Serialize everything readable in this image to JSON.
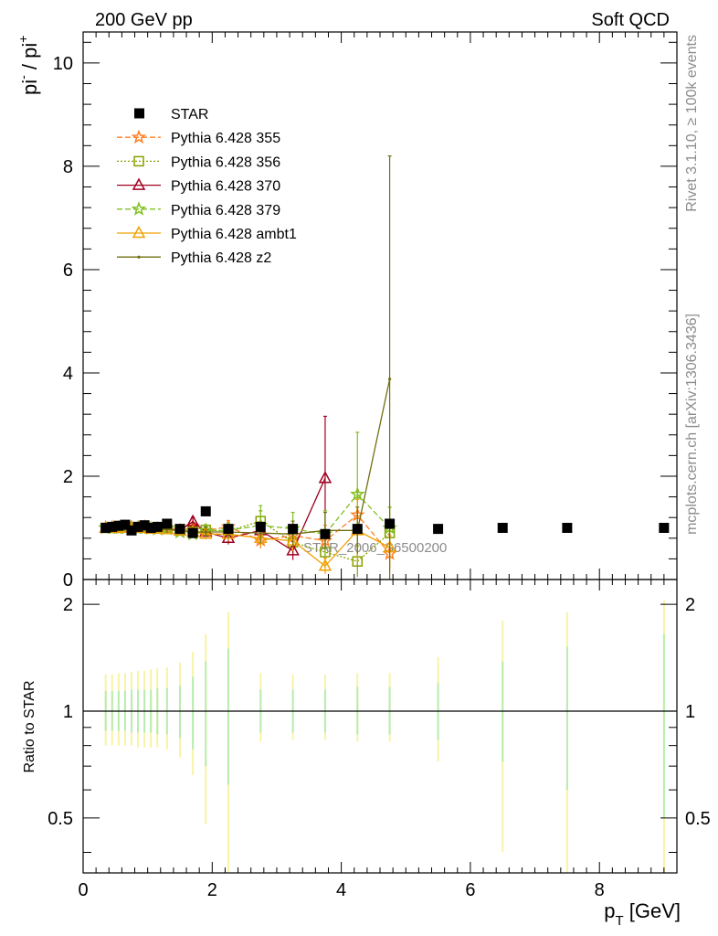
{
  "header": {
    "left": "200 GeV pp",
    "right": "Soft QCD",
    "side_top": "Rivet 3.1.10, ≥ 100k events",
    "side_bottom": "mcplots.cern.ch [arXiv:1306.3436]"
  },
  "ylabel_main": {
    "base": "pi",
    "sup1": "-",
    "mid": " / pi",
    "sup2": "+"
  },
  "ylabel_ratio": "Ratio to STAR",
  "xlabel": {
    "base": "p",
    "sub": "T",
    "unit": " [GeV]"
  },
  "watermark": "STAR_2006_S6500200",
  "colors": {
    "star": "#000000",
    "p355": "#ff7f24",
    "p356": "#8aa000",
    "p370": "#a00020",
    "p379": "#80c020",
    "ambt1": "#f0a000",
    "z2": "#707010"
  },
  "chart_data": {
    "type": "scatter",
    "x_range": [
      0,
      9.2
    ],
    "main_ylim": [
      0,
      10.6
    ],
    "ratio_ylim": [
      0.35,
      2.35
    ],
    "ratio_log": true,
    "x_ticks": [
      0,
      2,
      4,
      6,
      8
    ],
    "main_y_ticks": [
      0,
      2,
      4,
      6,
      8,
      10
    ],
    "ratio_y_ticks": [
      0.5,
      1,
      2
    ],
    "legend_position": "top-left",
    "star": {
      "name": "STAR",
      "x": [
        0.35,
        0.45,
        0.55,
        0.65,
        0.75,
        0.85,
        0.95,
        1.05,
        1.15,
        1.3,
        1.5,
        1.7,
        1.9,
        2.25,
        2.75,
        3.25,
        3.75,
        4.25,
        4.75,
        5.5,
        6.5,
        7.5,
        9.0
      ],
      "y": [
        1.0,
        1.02,
        1.04,
        1.06,
        0.95,
        1.02,
        1.05,
        1.0,
        1.02,
        1.08,
        0.98,
        0.9,
        1.32,
        0.98,
        1.02,
        0.98,
        0.88,
        0.98,
        1.08,
        0.98,
        1.0,
        1.0,
        1.0
      ]
    },
    "ratio_bands": {
      "x": [
        0.35,
        0.45,
        0.55,
        0.65,
        0.75,
        0.85,
        0.95,
        1.05,
        1.15,
        1.3,
        1.5,
        1.7,
        1.9,
        2.25,
        2.75,
        3.25,
        3.75,
        4.25,
        4.75,
        5.5,
        6.5,
        7.5,
        9.0
      ],
      "stat_up": [
        1.14,
        1.14,
        1.14,
        1.14,
        1.15,
        1.15,
        1.15,
        1.15,
        1.16,
        1.16,
        1.18,
        1.25,
        1.38,
        1.5,
        1.15,
        1.15,
        1.15,
        1.17,
        1.17,
        1.2,
        1.38,
        1.52,
        1.65
      ],
      "stat_dn": [
        0.88,
        0.88,
        0.88,
        0.88,
        0.87,
        0.87,
        0.87,
        0.87,
        0.86,
        0.86,
        0.84,
        0.78,
        0.7,
        0.62,
        0.87,
        0.87,
        0.87,
        0.86,
        0.86,
        0.83,
        0.72,
        0.6,
        0.5
      ],
      "sys_up": [
        1.27,
        1.27,
        1.28,
        1.28,
        1.29,
        1.3,
        1.3,
        1.31,
        1.32,
        1.33,
        1.37,
        1.47,
        1.65,
        1.9,
        1.28,
        1.27,
        1.27,
        1.28,
        1.28,
        1.42,
        1.8,
        1.9,
        2.05
      ],
      "sys_dn": [
        0.8,
        0.8,
        0.8,
        0.8,
        0.8,
        0.79,
        0.79,
        0.79,
        0.79,
        0.78,
        0.74,
        0.66,
        0.48,
        0.35,
        0.82,
        0.83,
        0.83,
        0.82,
        0.82,
        0.72,
        0.4,
        0.35,
        0.35
      ]
    },
    "series": [
      {
        "name": "Pythia 6.428 355",
        "key": "p355",
        "marker": "star",
        "dash": "6,3",
        "x": [
          0.35,
          0.45,
          0.55,
          0.65,
          0.75,
          0.85,
          0.95,
          1.05,
          1.15,
          1.3,
          1.5,
          1.7,
          1.9,
          2.25,
          2.75,
          3.25,
          3.75,
          4.25,
          4.75
        ],
        "y": [
          1.0,
          1.01,
          1.0,
          1.0,
          1.01,
          1.0,
          1.02,
          0.99,
          0.98,
          1.0,
          0.94,
          1.02,
          0.95,
          1.02,
          0.76,
          0.85,
          0.75,
          1.25,
          0.5
        ],
        "err": [
          0.04,
          0.04,
          0.04,
          0.04,
          0.04,
          0.04,
          0.04,
          0.05,
          0.05,
          0.06,
          0.06,
          0.08,
          0.1,
          0.12,
          0.16,
          0.2,
          0.3,
          0.45,
          0.35
        ]
      },
      {
        "name": "Pythia 6.428 356",
        "key": "p356",
        "marker": "square",
        "dash": "2,2",
        "x": [
          0.35,
          0.45,
          0.55,
          0.65,
          0.75,
          0.85,
          0.95,
          1.05,
          1.15,
          1.3,
          1.5,
          1.7,
          1.9,
          2.25,
          2.75,
          3.25,
          3.75,
          4.25,
          4.75
        ],
        "y": [
          1.0,
          1.0,
          1.0,
          1.02,
          1.0,
          1.0,
          1.01,
          1.0,
          0.99,
          0.98,
          0.95,
          0.93,
          0.96,
          0.94,
          1.13,
          0.72,
          0.53,
          0.35,
          0.9
        ],
        "err": [
          0.04,
          0.04,
          0.04,
          0.04,
          0.04,
          0.04,
          0.04,
          0.05,
          0.05,
          0.06,
          0.06,
          0.08,
          0.1,
          0.12,
          0.2,
          0.25,
          0.3,
          0.3,
          0.5
        ]
      },
      {
        "name": "Pythia 6.428 370",
        "key": "p370",
        "marker": "triangle",
        "dash": "",
        "x": [
          0.35,
          0.45,
          0.55,
          0.65,
          0.75,
          0.85,
          0.95,
          1.05,
          1.15,
          1.3,
          1.5,
          1.7,
          1.9,
          2.25,
          2.75,
          3.25,
          3.75
        ],
        "y": [
          1.0,
          1.0,
          1.0,
          1.02,
          1.0,
          1.0,
          1.0,
          0.98,
          0.98,
          0.98,
          0.95,
          1.12,
          0.92,
          0.8,
          0.95,
          0.56,
          1.96
        ],
        "err": [
          0.04,
          0.04,
          0.04,
          0.04,
          0.04,
          0.04,
          0.04,
          0.05,
          0.05,
          0.06,
          0.06,
          0.08,
          0.1,
          0.12,
          0.16,
          0.18,
          1.2
        ]
      },
      {
        "name": "Pythia 6.428 379",
        "key": "p379",
        "marker": "star",
        "dash": "6,3",
        "x": [
          0.35,
          0.45,
          0.55,
          0.65,
          0.75,
          0.85,
          0.95,
          1.05,
          1.15,
          1.3,
          1.5,
          1.7,
          1.9,
          2.25,
          2.75,
          3.25,
          3.75,
          4.25,
          4.75
        ],
        "y": [
          1.0,
          1.0,
          1.0,
          1.01,
          1.0,
          1.0,
          1.0,
          0.99,
          0.98,
          0.98,
          0.92,
          0.88,
          0.95,
          0.95,
          1.05,
          0.98,
          0.88,
          1.65,
          1.0
        ],
        "err": [
          0.04,
          0.04,
          0.04,
          0.04,
          0.04,
          0.04,
          0.04,
          0.05,
          0.05,
          0.06,
          0.06,
          0.08,
          0.1,
          0.15,
          0.38,
          0.32,
          0.45,
          1.2,
          0.4
        ]
      },
      {
        "name": "Pythia 6.428 ambt1",
        "key": "ambt1",
        "marker": "triangle",
        "dash": "",
        "x": [
          0.35,
          0.45,
          0.55,
          0.65,
          0.75,
          0.85,
          0.95,
          1.05,
          1.15,
          1.3,
          1.5,
          1.7,
          1.9,
          2.25,
          2.75,
          3.25,
          3.75,
          4.25,
          4.75
        ],
        "y": [
          1.0,
          1.0,
          1.0,
          1.0,
          1.0,
          1.0,
          1.0,
          0.98,
          0.98,
          0.97,
          0.95,
          0.92,
          0.88,
          0.88,
          0.8,
          0.75,
          0.26,
          0.95,
          0.62
        ],
        "err": [
          0.04,
          0.04,
          0.04,
          0.04,
          0.04,
          0.04,
          0.04,
          0.05,
          0.05,
          0.06,
          0.06,
          0.08,
          0.1,
          0.12,
          0.15,
          0.2,
          0.15,
          0.6,
          0.4
        ]
      },
      {
        "name": "Pythia 6.428 z2",
        "key": "z2",
        "marker": "dot",
        "dash": "",
        "x": [
          0.35,
          0.45,
          0.55,
          0.65,
          0.75,
          0.85,
          0.95,
          1.05,
          1.15,
          1.3,
          1.5,
          1.7,
          1.9,
          2.25,
          2.75,
          3.25,
          3.75,
          4.25,
          4.75
        ],
        "y": [
          1.0,
          1.0,
          1.0,
          1.0,
          0.98,
          0.98,
          0.98,
          0.98,
          0.97,
          0.97,
          0.95,
          0.92,
          0.92,
          0.92,
          0.9,
          0.88,
          0.95,
          0.95,
          3.88
        ],
        "err": [
          0.04,
          0.04,
          0.04,
          0.04,
          0.04,
          0.04,
          0.04,
          0.05,
          0.05,
          0.06,
          0.06,
          0.08,
          0.1,
          0.12,
          0.2,
          0.25,
          0.35,
          0.45,
          4.32
        ]
      }
    ]
  }
}
